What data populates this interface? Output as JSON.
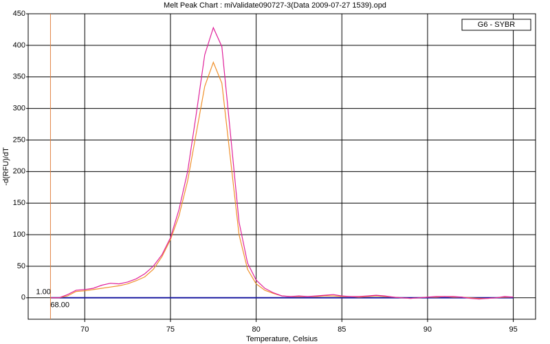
{
  "chart_data": {
    "type": "line",
    "title": "Melt Peak Chart : miValidate090727-3(Data 2009-07-27 1539).opd",
    "x_label": "Temperature, Celsius",
    "y_label": "-d(RFU)/dT",
    "x": [
      68,
      68.5,
      69,
      69.5,
      70,
      70.5,
      71,
      71.5,
      72,
      72.5,
      73,
      73.5,
      74,
      74.5,
      75,
      75.5,
      76,
      76.5,
      77,
      77.5,
      78,
      78.5,
      79,
      79.5,
      80,
      80.5,
      81,
      81.5,
      82,
      82.5,
      83,
      83.5,
      84,
      84.5,
      85,
      85.5,
      86,
      86.5,
      87,
      87.5,
      88,
      88.5,
      89,
      89.5,
      90,
      90.5,
      91,
      91.5,
      92,
      92.5,
      93,
      93.5,
      94,
      94.5,
      95
    ],
    "series": [
      {
        "name": "G6 - SYBR",
        "color": "#e0209a",
        "values": [
          0,
          0,
          5,
          12,
          13,
          15,
          20,
          23,
          22,
          25,
          30,
          38,
          50,
          68,
          95,
          140,
          200,
          290,
          385,
          428,
          398,
          260,
          120,
          55,
          28,
          15,
          8,
          3,
          2,
          3,
          2,
          3,
          4,
          5,
          3,
          2,
          2,
          3,
          4,
          3,
          1,
          0,
          -1,
          0,
          1,
          2,
          2,
          2,
          1,
          -1,
          -2,
          -1,
          0,
          2,
          1
        ]
      },
      {
        "color": "#f0902a",
        "values": [
          0,
          0,
          3,
          10,
          11,
          13,
          15,
          17,
          19,
          22,
          27,
          33,
          45,
          65,
          92,
          130,
          185,
          260,
          335,
          373,
          340,
          220,
          100,
          45,
          22,
          12,
          7,
          3,
          2,
          2,
          2,
          2,
          3,
          3,
          2,
          2,
          1,
          2,
          3,
          2,
          1,
          0,
          -1,
          0,
          1,
          1,
          2,
          1,
          1,
          0,
          -1,
          -1,
          0,
          1,
          1
        ]
      },
      {
        "color": "#1a1aa0",
        "values": [
          0,
          0,
          0,
          0,
          0,
          0,
          0,
          0,
          0,
          0,
          0,
          0,
          0,
          0,
          0,
          0,
          0,
          0,
          0,
          0,
          0,
          0,
          0,
          0,
          0,
          0,
          0,
          0,
          0,
          0,
          0,
          0,
          0,
          0,
          0,
          0,
          0,
          0,
          0,
          0,
          0,
          0,
          0,
          0,
          0,
          0,
          0,
          0,
          0,
          0,
          0,
          0,
          0,
          0,
          0
        ]
      }
    ],
    "xlim": [
      66.7,
      96.3
    ],
    "ylim": [
      -34,
      450
    ],
    "xticks": [
      70,
      75,
      80,
      85,
      90,
      95
    ],
    "yticks": [
      0,
      50,
      100,
      150,
      200,
      250,
      300,
      350,
      400,
      450
    ],
    "grid": true,
    "legend": "top-right",
    "cursor": {
      "x": {
        "value": 68,
        "label": "68.00"
      },
      "y_text": "1.00",
      "color": "#e08040"
    }
  }
}
